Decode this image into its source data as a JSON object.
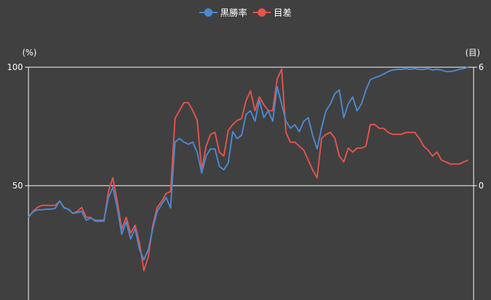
{
  "colors": {
    "background": "#404040",
    "series1": "#4a8ad0",
    "series2": "#e5534b",
    "axis": "#ffffff"
  },
  "chart_data": {
    "type": "line",
    "legend_position": "top",
    "grid": true,
    "y_left": {
      "label": "(%)",
      "range": [
        0,
        100
      ],
      "ticks": [
        "100",
        "50"
      ]
    },
    "y_right": {
      "label": "(目)",
      "range": [
        -6,
        6
      ],
      "ticks": [
        "6",
        "0"
      ]
    },
    "series": [
      {
        "name": "黒勝率",
        "axis": "left",
        "values": [
          36.8,
          38.9,
          39.8,
          39.8,
          40.1,
          40.1,
          40.4,
          43.6,
          40.6,
          40.1,
          38.3,
          38.6,
          39.2,
          35.4,
          36.3,
          35.4,
          35.4,
          35.4,
          45.0,
          49.4,
          40.6,
          29.5,
          34.8,
          27.5,
          31.9,
          23.1,
          18.7,
          23.1,
          31.9,
          39.2,
          42.1,
          45.0,
          40.6,
          68.4,
          69.9,
          68.4,
          67.5,
          68.4,
          64.0,
          55.3,
          62.6,
          65.5,
          65.5,
          58.2,
          56.7,
          59.6,
          72.8,
          69.9,
          71.3,
          80.1,
          81.6,
          77.2,
          86.0,
          78.7,
          81.6,
          77.2,
          91.8,
          84.5,
          77.2,
          74.3,
          75.7,
          72.8,
          77.2,
          78.7,
          71.3,
          65.5,
          74.3,
          81.6,
          84.5,
          88.9,
          90.4,
          78.7,
          84.5,
          87.4,
          81.6,
          84.5,
          90.4,
          94.7,
          95.6,
          96.2,
          97.1,
          98.2,
          98.8,
          99.1,
          99.1,
          99.4,
          99.1,
          99.4,
          99.1,
          99.1,
          99.4,
          98.8,
          99.1,
          98.8,
          98.2,
          98.2,
          98.5,
          99.1,
          99.4,
          100
        ]
      },
      {
        "name": "目差",
        "axis": "right",
        "values": [
          -1.6,
          -1.3,
          -1.1,
          -1.0,
          -1.0,
          -1.0,
          -1.0,
          -0.8,
          -1.1,
          -1.2,
          -1.4,
          -1.3,
          -1.1,
          -1.6,
          -1.6,
          -1.8,
          -1.8,
          -1.8,
          -0.3,
          0.4,
          -0.8,
          -2.2,
          -1.6,
          -2.4,
          -2.0,
          -2.9,
          -4.3,
          -3.6,
          -2.0,
          -1.1,
          -0.8,
          -0.4,
          -0.3,
          3.4,
          3.8,
          4.2,
          4.2,
          3.8,
          3.3,
          0.8,
          2.0,
          2.6,
          2.7,
          1.7,
          1.5,
          2.8,
          3.1,
          3.3,
          3.4,
          4.3,
          4.8,
          3.8,
          4.5,
          4.1,
          3.8,
          3.8,
          5.4,
          5.9,
          2.7,
          2.2,
          2.2,
          2.0,
          1.8,
          1.3,
          0.8,
          0.4,
          2.4,
          2.6,
          2.7,
          2.4,
          1.5,
          1.2,
          1.9,
          1.7,
          1.9,
          1.9,
          2.0,
          3.1,
          3.1,
          2.9,
          2.9,
          2.7,
          2.6,
          2.6,
          2.6,
          2.7,
          2.7,
          2.7,
          2.4,
          2.0,
          1.8,
          1.5,
          1.7,
          1.3,
          1.2,
          1.1,
          1.1,
          1.1,
          1.2,
          1.3
        ]
      }
    ]
  }
}
